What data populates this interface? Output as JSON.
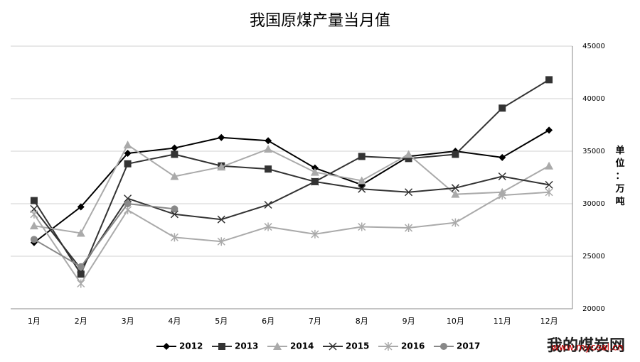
{
  "chart_data": {
    "type": "line",
    "title": "我国原煤产量当月值",
    "y_axis_label": "单位：万吨",
    "categories": [
      "1月",
      "2月",
      "3月",
      "4月",
      "5月",
      "6月",
      "7月",
      "8月",
      "9月",
      "10月",
      "11月",
      "12月"
    ],
    "series": [
      {
        "name": "2012",
        "color": "#000000",
        "marker": "diamond",
        "values": [
          26300,
          29700,
          34800,
          35300,
          36300,
          36000,
          33400,
          31800,
          34500,
          35000,
          34400,
          37000
        ]
      },
      {
        "name": "2013",
        "color": "#333333",
        "marker": "square",
        "values": [
          30300,
          23300,
          33800,
          34700,
          33600,
          33300,
          32100,
          34500,
          34300,
          34700,
          39100,
          41800
        ]
      },
      {
        "name": "2014",
        "color": "#aaaaaa",
        "marker": "triangle",
        "values": [
          27900,
          27200,
          35600,
          32600,
          33500,
          35200,
          33000,
          32200,
          34700,
          30900,
          31100,
          33600
        ]
      },
      {
        "name": "2015",
        "color": "#333333",
        "marker": "x",
        "values": [
          29500,
          23800,
          30500,
          29000,
          28500,
          29900,
          32100,
          31400,
          31100,
          31500,
          32600,
          31800
        ]
      },
      {
        "name": "2016",
        "color": "#aaaaaa",
        "marker": "star",
        "values": [
          29000,
          22400,
          29400,
          26800,
          26400,
          27800,
          27100,
          27800,
          27700,
          28200,
          30800,
          31100
        ]
      },
      {
        "name": "2017",
        "color": "#888888",
        "marker": "circle",
        "values": [
          26600,
          24000,
          30000,
          29500,
          null,
          null,
          null,
          null,
          null,
          null,
          null,
          null
        ]
      }
    ],
    "ylim": [
      20000,
      45000
    ],
    "yticks": [
      20000,
      25000,
      30000,
      35000,
      40000,
      45000
    ],
    "grid": true,
    "legend": "bottom",
    "watermark": {
      "name": "我的煤炭网",
      "url": "www.mycoal.cn"
    }
  }
}
